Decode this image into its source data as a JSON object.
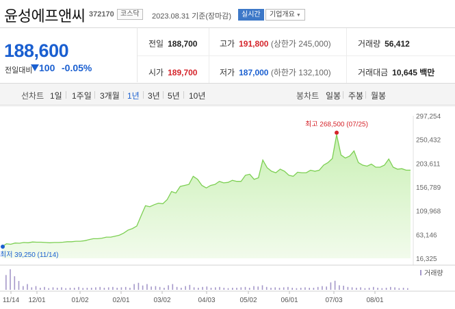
{
  "stock": {
    "name": "윤성에프앤씨",
    "code": "372170",
    "market": "코스닥",
    "date": "2023.08.31 기준(장마감)",
    "realtime_label": "실시간",
    "company_label": "기업개요"
  },
  "price": {
    "current": "188,600",
    "change_label": "전일대비",
    "change_value": "100",
    "change_rate": "-0.05%",
    "direction": "down"
  },
  "info": {
    "prev_label": "전일",
    "prev_value": "188,700",
    "high_label": "고가",
    "high_value": "191,800",
    "upper_limit": "(상한가 245,000)",
    "volume_label": "거래량",
    "volume_value": "56,412",
    "open_label": "시가",
    "open_value": "189,700",
    "low_label": "저가",
    "low_value": "187,000",
    "lower_limit": "(하한가 132,100)",
    "amount_label": "거래대금",
    "amount_value": "10,645 백만"
  },
  "line_tabs": {
    "label": "선차트",
    "items": [
      "1일",
      "1주일",
      "3개월",
      "1년",
      "3년",
      "5년",
      "10년"
    ],
    "active": "1년"
  },
  "candle_tabs": {
    "label": "봉차트",
    "items": [
      "일봉",
      "주봉",
      "월봉"
    ]
  },
  "chart_data": {
    "type": "area",
    "y_ticks": [
      "297,254",
      "250,432",
      "203,611",
      "156,789",
      "109,968",
      "63,146",
      "16,325"
    ],
    "y_tick_values": [
      297254,
      250432,
      203611,
      156789,
      109968,
      63146,
      16325
    ],
    "ylim": [
      16325,
      297254
    ],
    "x_ticks": [
      "11/14",
      "12/01",
      "01/02",
      "02/01",
      "03/02",
      "04/03",
      "05/02",
      "06/01",
      "07/03",
      "08/01"
    ],
    "max_label": "최고 268,500 (07/25)",
    "min_label": "최저 39,250 (11/14)",
    "volume_legend": "거래량",
    "series_values": [
      39250,
      45000,
      44000,
      46500,
      46000,
      47500,
      47000,
      48500,
      48000,
      48000,
      47500,
      47000,
      47500,
      47500,
      48000,
      49000,
      49000,
      50000,
      50000,
      51000,
      53000,
      55000,
      55000,
      56000,
      58000,
      58000,
      60000,
      62000,
      66000,
      72000,
      75000,
      80000,
      100000,
      120000,
      118000,
      122000,
      125000,
      124000,
      132000,
      148000,
      145000,
      158000,
      160000,
      162000,
      178000,
      172000,
      160000,
      155000,
      160000,
      162000,
      168000,
      165000,
      166000,
      170000,
      168000,
      168000,
      180000,
      182000,
      172000,
      175000,
      210000,
      195000,
      188000,
      185000,
      192000,
      188000,
      180000,
      178000,
      186000,
      185000,
      185000,
      190000,
      188000,
      190000,
      200000,
      205000,
      213000,
      260000,
      220000,
      214000,
      218000,
      228000,
      205000,
      200000,
      198000,
      202000,
      196000,
      196000,
      200000,
      212000,
      196000,
      192000,
      193000,
      190000,
      190000
    ],
    "volume_values": [
      72,
      100,
      66,
      43,
      18,
      28,
      12,
      18,
      10,
      14,
      8,
      12,
      10,
      12,
      8,
      10,
      10,
      14,
      9,
      10,
      10,
      12,
      14,
      10,
      12,
      14,
      10,
      12,
      14,
      10,
      28,
      34,
      21,
      28,
      16,
      18,
      14,
      10,
      22,
      28,
      14,
      10,
      18,
      24,
      12,
      10,
      14,
      16,
      10,
      12,
      14,
      10,
      8,
      10,
      10,
      12,
      14,
      10,
      18,
      16,
      22,
      14,
      10,
      12,
      10,
      12,
      14,
      10,
      8,
      10,
      12,
      10,
      10,
      14,
      18,
      16,
      36,
      44,
      22,
      20,
      14,
      12,
      10,
      12,
      8,
      10,
      14,
      10,
      8,
      10,
      14,
      12,
      8,
      10,
      8
    ]
  },
  "colors": {
    "price_down": "#1a5fd0",
    "price_up": "#d5242b",
    "area_line": "#7ccf52",
    "area_fill": "#c9f0b4",
    "volume_bar": "#a497c9"
  }
}
